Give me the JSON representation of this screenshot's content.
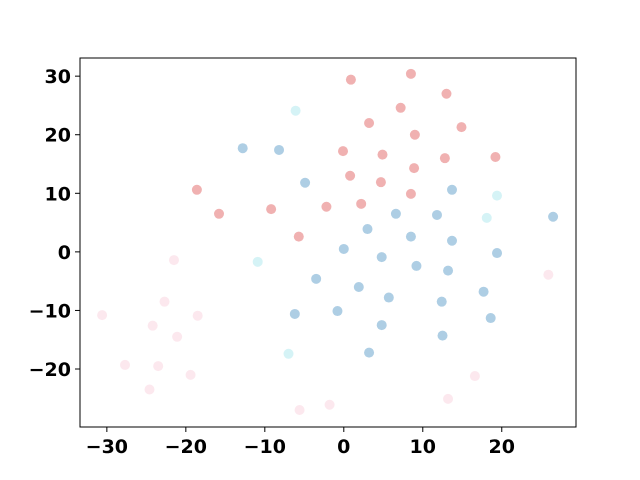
{
  "chart_data": {
    "type": "scatter",
    "xlim": [
      -33.4,
      29.4
    ],
    "ylim": [
      -29.9,
      33.1
    ],
    "xticks": [
      {
        "value": -30,
        "label": "−30"
      },
      {
        "value": -20,
        "label": "−20"
      },
      {
        "value": -10,
        "label": "−10"
      },
      0,
      10,
      20
    ],
    "yticks": [
      {
        "value": -20,
        "label": "−20"
      },
      {
        "value": -10,
        "label": "−10"
      },
      0,
      10,
      20,
      30
    ],
    "series": [
      {
        "color": "#d627285c",
        "x": [
          0.9,
          8.5,
          13.0,
          7.2,
          3.2,
          14.9,
          9.0,
          -0.1,
          4.9,
          19.2,
          12.8,
          8.9,
          0.8,
          4.7,
          -18.6,
          8.5,
          2.2,
          -2.2,
          -9.2,
          -15.8,
          -5.7
        ],
        "y": [
          29.4,
          30.4,
          27.0,
          24.6,
          22.0,
          21.3,
          20.0,
          17.2,
          16.6,
          16.2,
          16.0,
          14.3,
          13.0,
          11.9,
          10.6,
          9.9,
          8.2,
          7.7,
          7.3,
          6.5,
          2.6
        ]
      },
      {
        "color": "#1f77b45c",
        "x": [
          -12.8,
          -8.2,
          -4.9,
          13.7,
          6.6,
          11.8,
          26.5,
          3.0,
          8.5,
          13.7,
          0.0,
          19.4,
          4.8,
          9.2,
          13.2,
          -3.5,
          1.9,
          17.7,
          5.7,
          12.4,
          18.6,
          -0.8,
          -6.2,
          4.8,
          12.5,
          3.2
        ],
        "y": [
          17.7,
          17.4,
          11.8,
          10.6,
          6.5,
          6.3,
          6.0,
          3.9,
          2.6,
          1.9,
          0.5,
          -0.2,
          -0.9,
          -2.4,
          -3.2,
          -4.6,
          -6.0,
          -6.8,
          -7.8,
          -8.5,
          -11.3,
          -10.1,
          -10.6,
          -12.5,
          -14.3,
          -17.2
        ]
      },
      {
        "color": "#17becf2e",
        "x": [
          -6.1,
          19.4,
          18.1,
          -10.9,
          -7.0
        ],
        "y": [
          24.1,
          9.6,
          5.8,
          -1.7,
          -17.4
        ]
      },
      {
        "color": "#f080a02e",
        "x": [
          -21.5,
          25.9,
          -22.7,
          -30.6,
          -18.5,
          -24.2,
          -21.1,
          -27.7,
          -23.5,
          -19.4,
          16.6,
          -24.6,
          13.2,
          -1.8,
          -5.6
        ],
        "y": [
          -1.4,
          -3.9,
          -8.5,
          -10.8,
          -10.9,
          -12.6,
          -14.5,
          -19.3,
          -19.5,
          -21.0,
          -21.2,
          -23.5,
          -25.1,
          -26.1,
          -27.0
        ]
      }
    ]
  }
}
